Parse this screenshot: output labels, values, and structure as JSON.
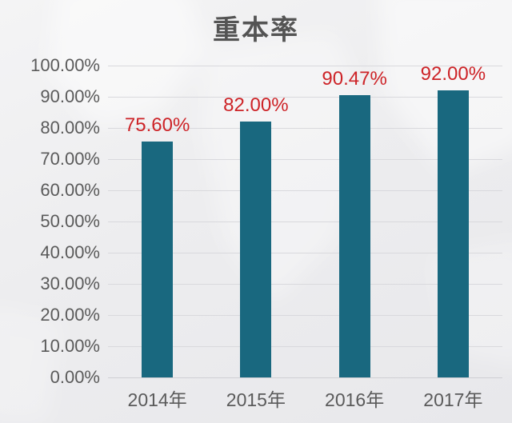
{
  "chart_data": {
    "type": "bar",
    "title": "重本率",
    "categories": [
      "2014年",
      "2015年",
      "2016年",
      "2017年"
    ],
    "values": [
      75.6,
      82.0,
      90.47,
      92.0
    ],
    "value_labels": [
      "75.60%",
      "82.00%",
      "90.47%",
      "92.00%"
    ],
    "ylim": [
      0,
      100
    ],
    "ytick_step": 10,
    "ytick_labels": [
      "0.00%",
      "10.00%",
      "20.00%",
      "30.00%",
      "40.00%",
      "50.00%",
      "60.00%",
      "70.00%",
      "80.00%",
      "90.00%",
      "100.00%"
    ],
    "grid": true,
    "legend": false,
    "colors": {
      "bar": "#19687f",
      "value_label": "#cd2327",
      "axis_text": "#5a5a5a",
      "title_text": "#545454",
      "gridline": "#d9d9dd",
      "background": "#ededef"
    }
  }
}
